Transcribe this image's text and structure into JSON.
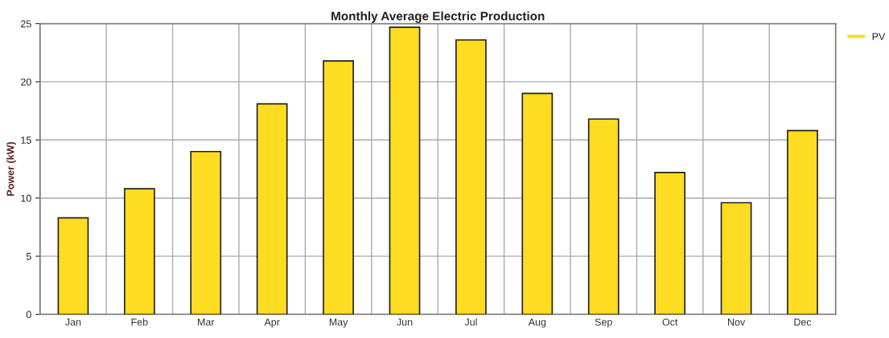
{
  "chart_data": {
    "type": "bar",
    "title": "Monthly Average Electric Production",
    "ylabel": "Power (kW)",
    "categories": [
      "Jan",
      "Feb",
      "Mar",
      "Apr",
      "May",
      "Jun",
      "Jul",
      "Aug",
      "Sep",
      "Oct",
      "Nov",
      "Dec"
    ],
    "series": [
      {
        "name": "PV",
        "color": "#fddc22",
        "values": [
          8.3,
          10.8,
          14.0,
          18.1,
          21.8,
          24.7,
          23.6,
          19.0,
          16.8,
          12.2,
          9.6,
          15.8
        ]
      }
    ],
    "ylim": [
      0,
      25
    ],
    "yticks": [
      0,
      5,
      10,
      15,
      20,
      25
    ],
    "grid": true,
    "legend": "top right"
  }
}
